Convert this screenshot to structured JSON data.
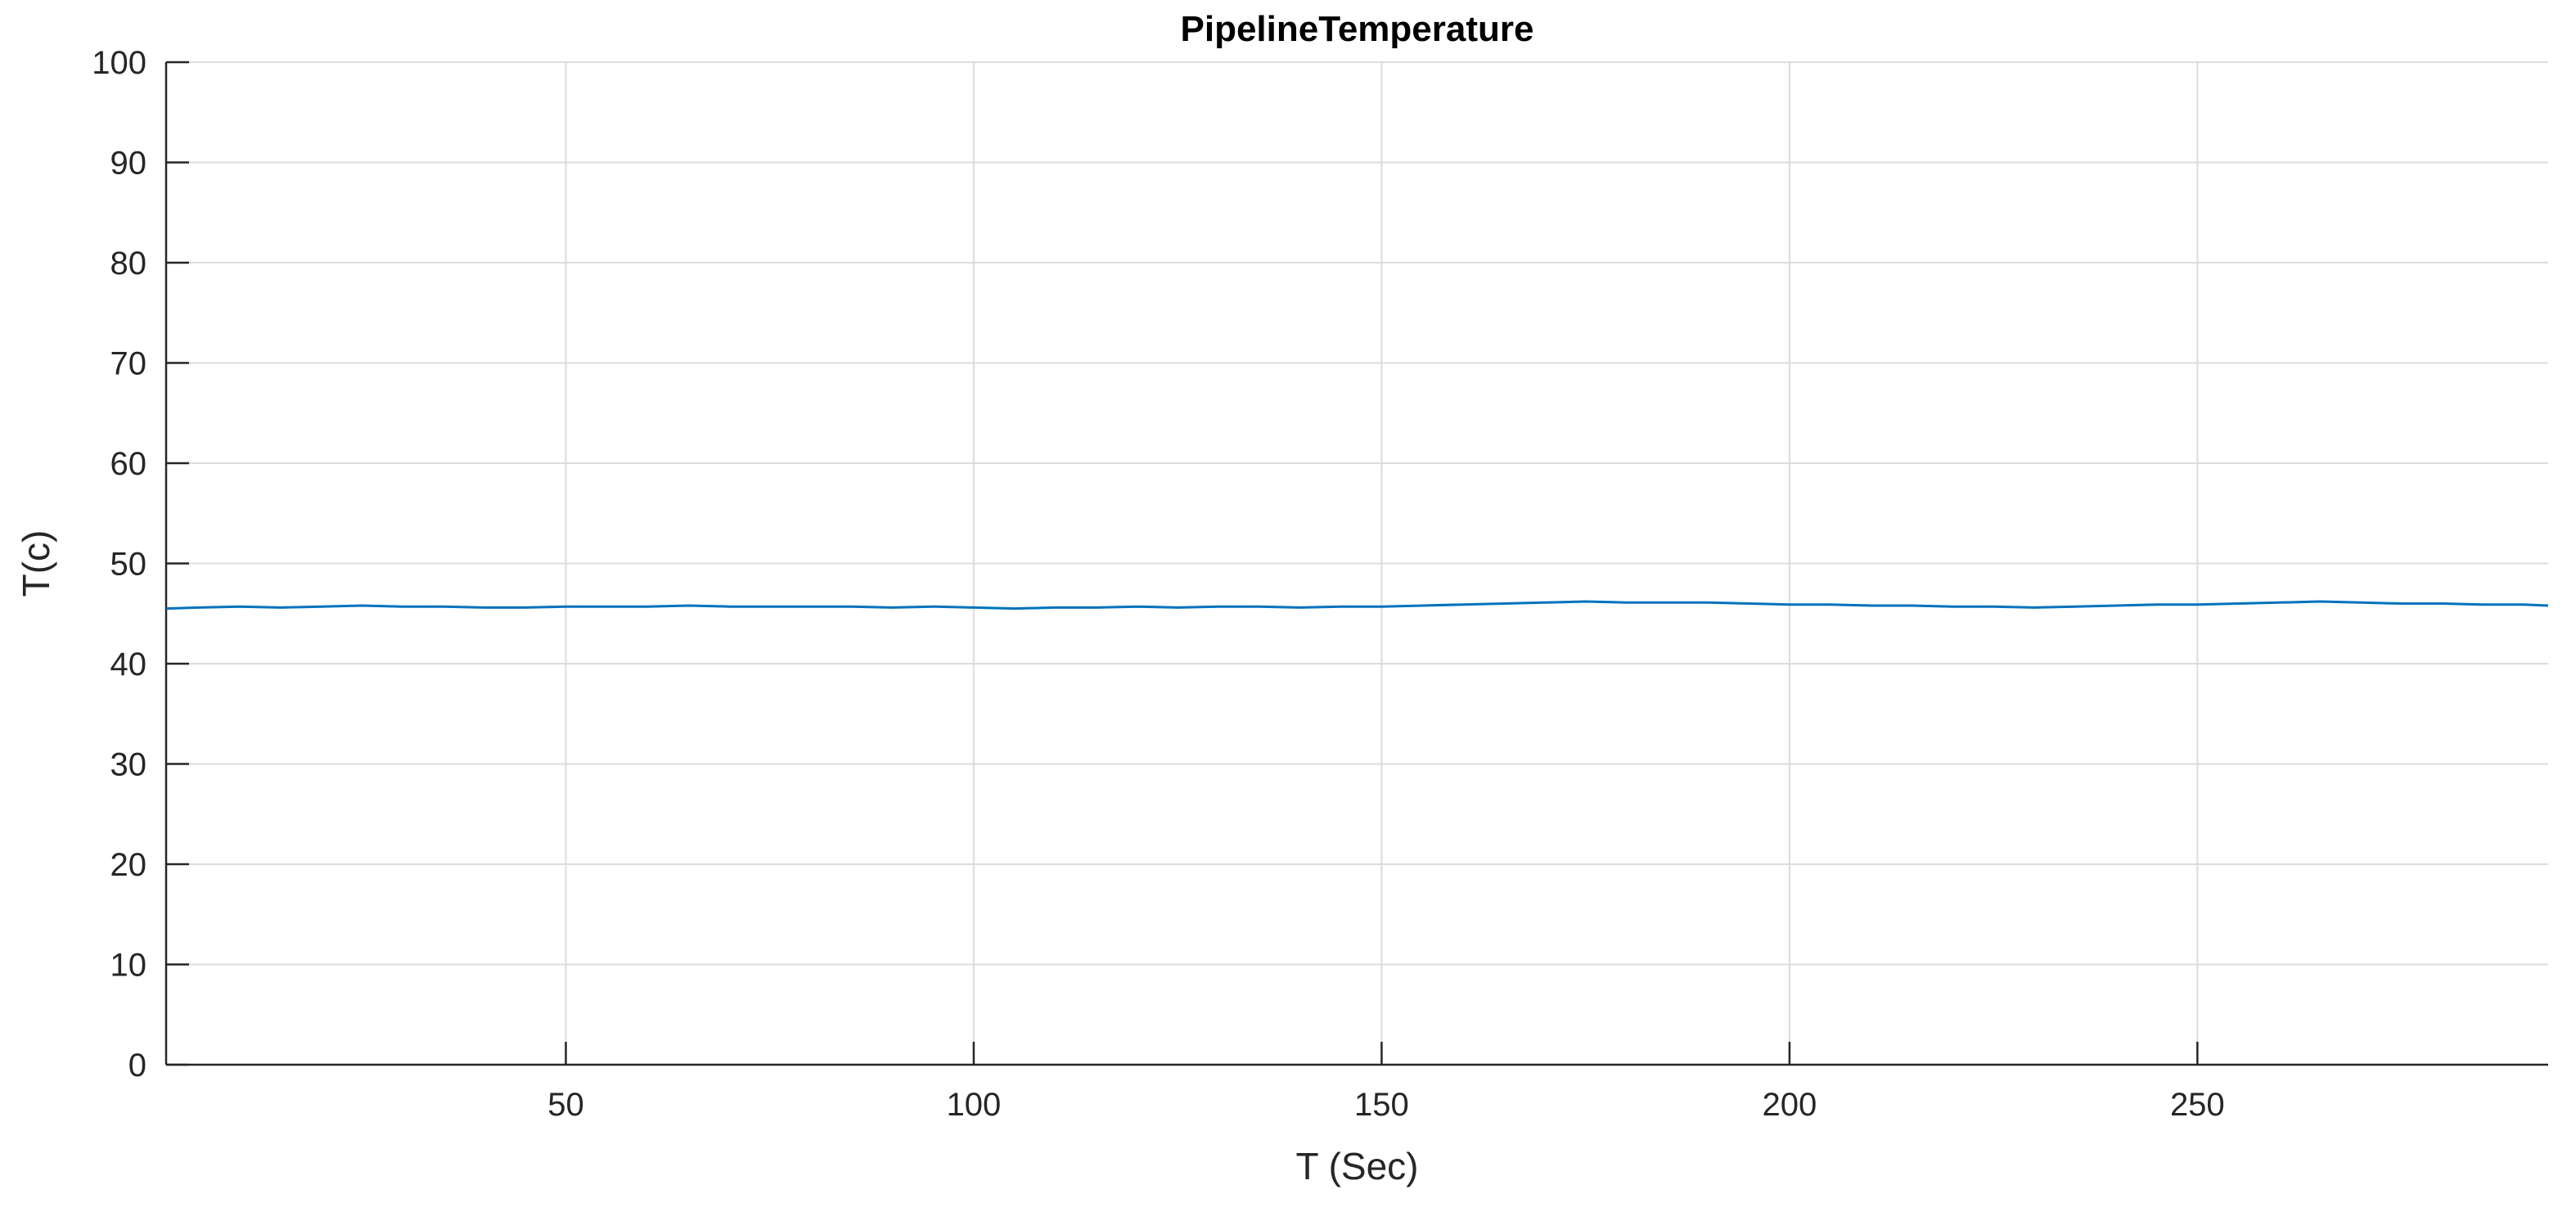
{
  "chart_data": {
    "type": "line",
    "title": "PipelineTemperature",
    "xlabel": "T (Sec)",
    "ylabel": "T(c)",
    "xlim": [
      1,
      293
    ],
    "ylim": [
      0,
      100
    ],
    "grid": true,
    "legend": "none",
    "x_ticks": [
      50,
      100,
      150,
      200,
      250
    ],
    "x_tick_labels": [
      "50",
      "100",
      "150",
      "200",
      "250"
    ],
    "y_ticks": [
      0,
      10,
      20,
      30,
      40,
      50,
      60,
      70,
      80,
      90,
      100
    ],
    "y_tick_labels": [
      "0",
      "10",
      "20",
      "30",
      "40",
      "50",
      "60",
      "70",
      "80",
      "90",
      "100"
    ],
    "series": [
      {
        "color": "#0072bd",
        "x": [
          1,
          5,
          10,
          15,
          20,
          25,
          30,
          35,
          40,
          45,
          50,
          55,
          60,
          65,
          70,
          75,
          80,
          85,
          90,
          95,
          100,
          105,
          110,
          115,
          120,
          125,
          130,
          135,
          140,
          145,
          150,
          155,
          160,
          165,
          170,
          175,
          180,
          185,
          190,
          195,
          200,
          205,
          210,
          215,
          220,
          225,
          230,
          235,
          240,
          245,
          250,
          255,
          260,
          265,
          270,
          275,
          280,
          285,
          290,
          293
        ],
        "y": [
          45.5,
          45.6,
          45.7,
          45.6,
          45.7,
          45.8,
          45.7,
          45.7,
          45.6,
          45.6,
          45.7,
          45.7,
          45.7,
          45.8,
          45.7,
          45.7,
          45.7,
          45.7,
          45.6,
          45.7,
          45.6,
          45.5,
          45.6,
          45.6,
          45.7,
          45.6,
          45.7,
          45.7,
          45.6,
          45.7,
          45.7,
          45.8,
          45.9,
          46.0,
          46.1,
          46.2,
          46.1,
          46.1,
          46.1,
          46.0,
          45.9,
          45.9,
          45.8,
          45.8,
          45.7,
          45.7,
          45.6,
          45.7,
          45.8,
          45.9,
          45.9,
          46.0,
          46.1,
          46.2,
          46.1,
          46.0,
          46.0,
          45.9,
          45.9,
          45.8
        ]
      }
    ]
  }
}
